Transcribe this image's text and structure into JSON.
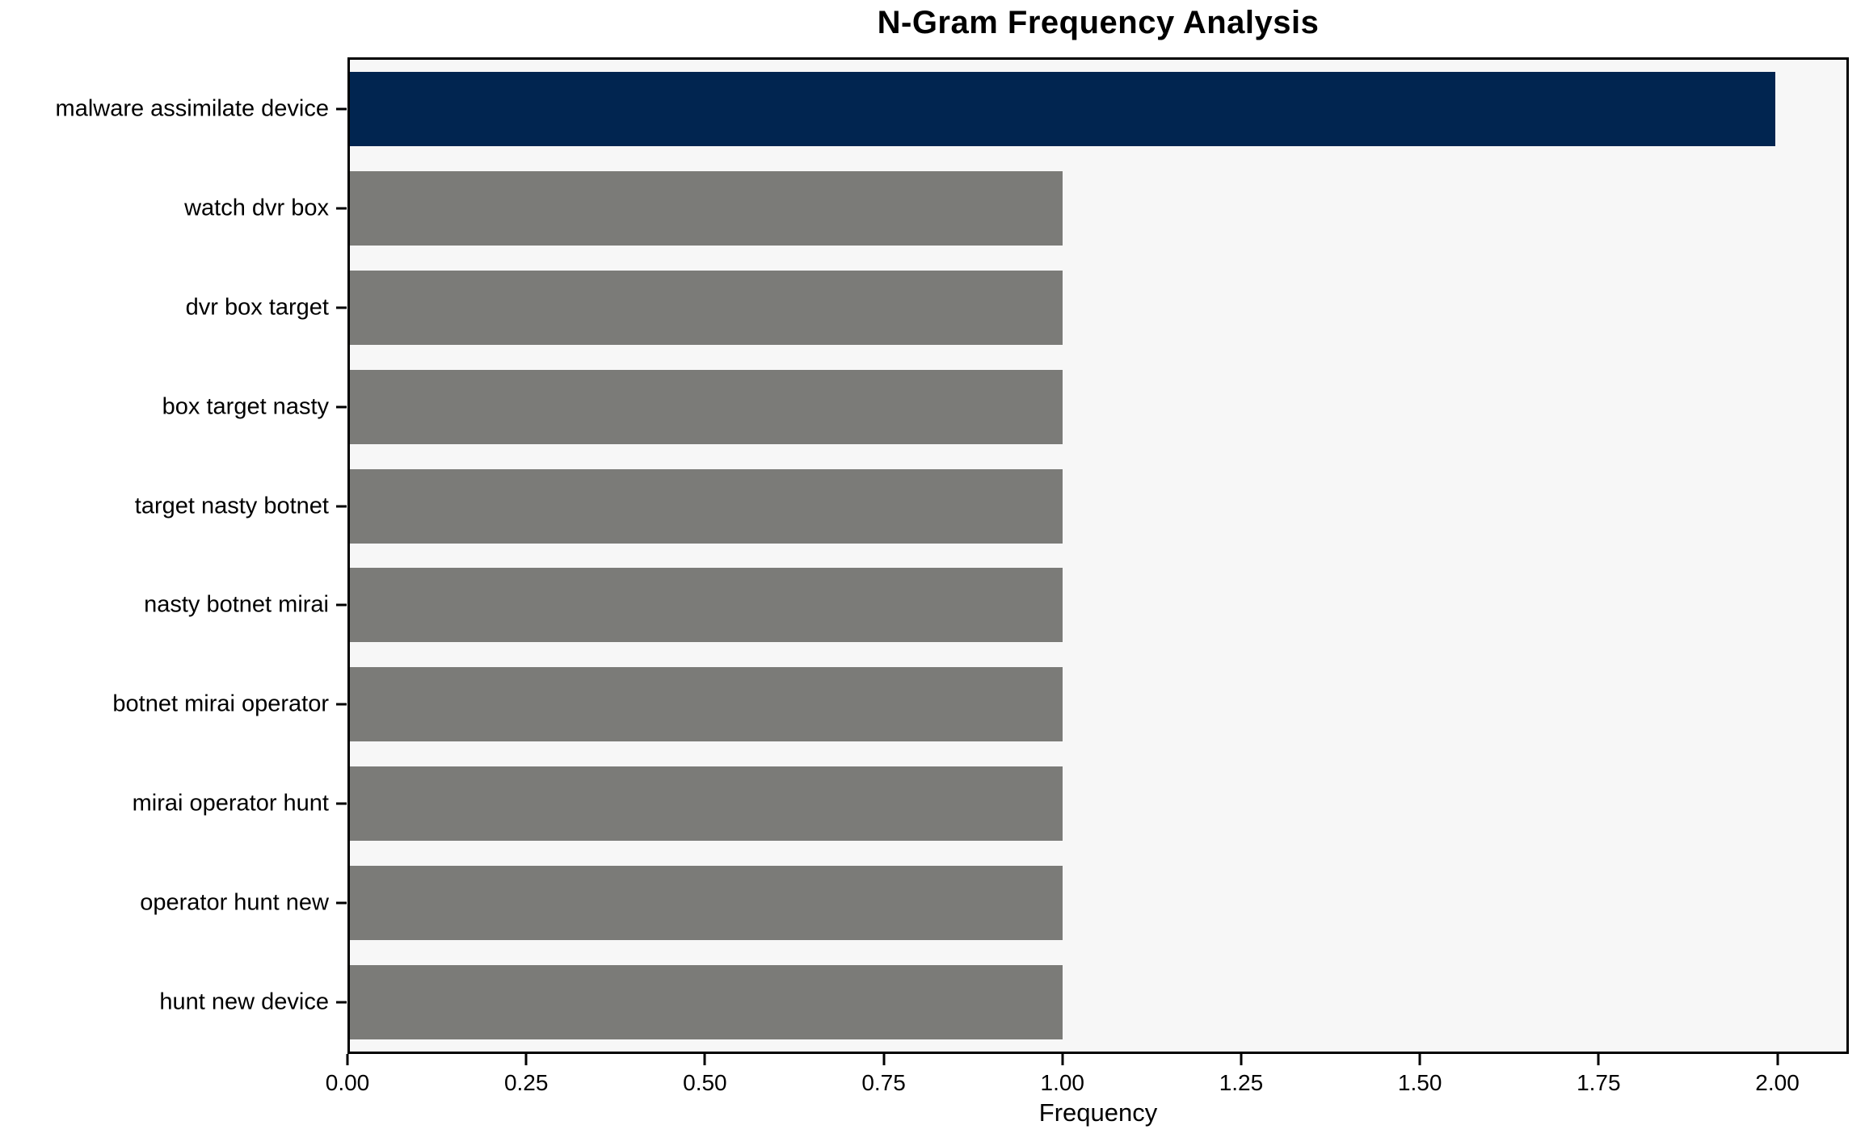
{
  "title": "N-Gram Frequency Analysis",
  "colors": {
    "bar_highlight": "#012550",
    "bar_default": "#7b7b78",
    "plot_background": "#f7f7f7",
    "spine": "#000000",
    "figure_background": "#ffffff",
    "text": "#000000"
  },
  "chart_data": {
    "type": "bar",
    "orientation": "horizontal",
    "title": "N-Gram Frequency Analysis",
    "xlabel": "Frequency",
    "ylabel": "",
    "categories": [
      "malware assimilate device",
      "watch dvr box",
      "dvr box target",
      "box target nasty",
      "target nasty botnet",
      "nasty botnet mirai",
      "botnet mirai operator",
      "mirai operator hunt",
      "operator hunt new",
      "hunt new device"
    ],
    "values": [
      2,
      1,
      1,
      1,
      1,
      1,
      1,
      1,
      1,
      1
    ],
    "highlight_index": 0,
    "xlim": [
      0,
      2.1
    ],
    "xtick_values": [
      0,
      0.25,
      0.5,
      0.75,
      1.0,
      1.25,
      1.5,
      1.75,
      2.0
    ],
    "xtick_labels": [
      "0.00",
      "0.25",
      "0.50",
      "0.75",
      "1.00",
      "1.25",
      "1.50",
      "1.75",
      "2.00"
    ],
    "grid": false,
    "legend": null,
    "bar_relative_height": 0.75
  }
}
